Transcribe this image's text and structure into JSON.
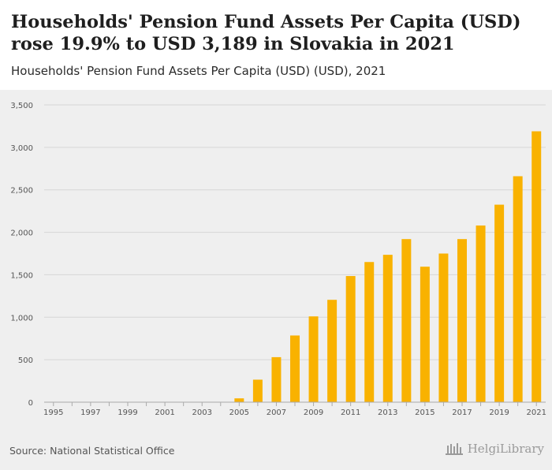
{
  "header": {
    "title": "Households' Pension Fund Assets Per Capita (USD) rose 19.9% to USD 3,189 in Slovakia in 2021",
    "subtitle": "Households' Pension Fund Assets Per Capita (USD) (USD), 2021"
  },
  "footer": {
    "source": "Source: National Statistical Office",
    "brand": "HelgiLibrary"
  },
  "colors": {
    "bar": "#f9b200",
    "grid": "#d6d6d6",
    "axis_text": "#555555",
    "panel": "#efefef"
  },
  "chart_data": {
    "type": "bar",
    "title": "Households' Pension Fund Assets Per Capita (USD) (USD), 2021",
    "xlabel": "",
    "ylabel": "",
    "ylim": [
      0,
      3500
    ],
    "yticks": [
      0,
      500,
      1000,
      1500,
      2000,
      2500,
      3000,
      3500
    ],
    "ytick_labels": [
      "0",
      "500",
      "1,000",
      "1,500",
      "2,000",
      "2,500",
      "3,000",
      "3,500"
    ],
    "categories": [
      "1995",
      "1996",
      "1997",
      "1998",
      "1999",
      "2000",
      "2001",
      "2002",
      "2003",
      "2004",
      "2005",
      "2006",
      "2007",
      "2008",
      "2009",
      "2010",
      "2011",
      "2012",
      "2013",
      "2014",
      "2015",
      "2016",
      "2017",
      "2018",
      "2019",
      "2020",
      "2021"
    ],
    "xtick_labels": [
      "1995",
      "",
      "1997",
      "",
      "1999",
      "",
      "2001",
      "",
      "2003",
      "",
      "2005",
      "",
      "2007",
      "",
      "2009",
      "",
      "2011",
      "",
      "2013",
      "",
      "2015",
      "",
      "2017",
      "",
      "2019",
      "",
      "2021"
    ],
    "values": [
      0,
      0,
      0,
      0,
      0,
      0,
      0,
      0,
      0,
      0,
      45,
      265,
      530,
      785,
      1010,
      1205,
      1485,
      1650,
      1735,
      1920,
      1595,
      1750,
      1920,
      2080,
      2325,
      2660,
      3189
    ],
    "grid": true,
    "legend": "none"
  }
}
